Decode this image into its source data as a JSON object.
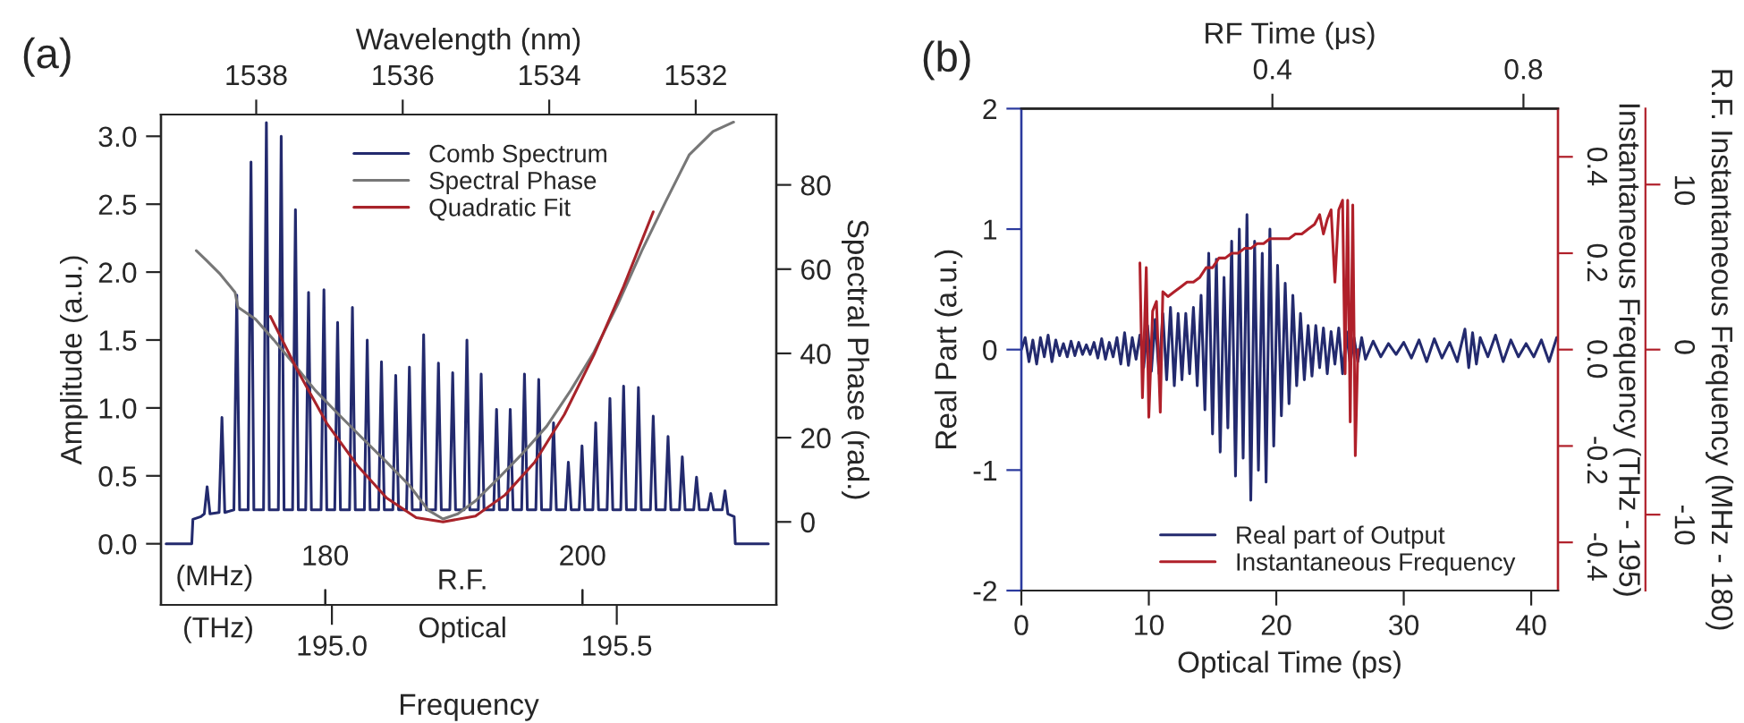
{
  "chart_data": [
    {
      "type": "line",
      "title": "(a)",
      "xlabel": "Frequency",
      "ylabel": "Amplitude (a.u.)",
      "y2label": "Spectral Phase (rad.)",
      "x2label": "Wavelength (nm)",
      "annotations": [
        "(MHz)",
        "180",
        "R.F.",
        "200",
        "(THz)",
        "Optical"
      ],
      "xlim": [
        194.7,
        195.78
      ],
      "xticks": [
        {
          "value": 195.0,
          "label": "195.0"
        },
        195.5
      ],
      "x2lim": [
        1539.3,
        1530.9
      ],
      "x2ticks": [
        1538,
        1536,
        1534,
        1532
      ],
      "ylim": [
        -0.45,
        3.16
      ],
      "yticks": [
        {
          "value": 0,
          "label": "0.0"
        },
        0.5,
        {
          "value": 1,
          "label": "1.0"
        },
        1.5,
        {
          "value": 2,
          "label": "2.0"
        },
        2.5,
        {
          "value": 3,
          "label": "3.0"
        }
      ],
      "y2lim": [
        -19.7,
        96.7
      ],
      "y2ticks": [
        0,
        20,
        40,
        60,
        80
      ],
      "legend": "top",
      "series": [
        {
          "name": "Comb Spectrum",
          "color": "#232a6e",
          "x": [
            194.709,
            194.754,
            194.756,
            194.77,
            194.776,
            194.781,
            194.786,
            194.802,
            194.807,
            194.812,
            194.828,
            194.833,
            194.838,
            194.853,
            194.858,
            194.863,
            194.88,
            194.885,
            194.89,
            194.906,
            194.911,
            194.916,
            194.931,
            194.936,
            194.941,
            194.954,
            194.959,
            194.964,
            194.981,
            194.986,
            194.991,
            195.005,
            195.01,
            195.015,
            195.031,
            195.036,
            195.041,
            195.057,
            195.062,
            195.067,
            195.082,
            195.087,
            195.092,
            195.107,
            195.112,
            195.117,
            195.131,
            195.136,
            195.141,
            195.156,
            195.161,
            195.166,
            195.182,
            195.187,
            195.192,
            195.207,
            195.212,
            195.217,
            195.232,
            195.237,
            195.242,
            195.257,
            195.262,
            195.267,
            195.284,
            195.289,
            195.294,
            195.308,
            195.313,
            195.318,
            195.333,
            195.338,
            195.343,
            195.358,
            195.363,
            195.368,
            195.384,
            195.389,
            195.394,
            195.41,
            195.415,
            195.42,
            195.434,
            195.439,
            195.444,
            195.458,
            195.463,
            195.468,
            195.483,
            195.488,
            195.493,
            195.507,
            195.512,
            195.517,
            195.533,
            195.538,
            195.543,
            195.559,
            195.564,
            195.569,
            195.585,
            195.59,
            195.595,
            195.61,
            195.615,
            195.62,
            195.635,
            195.64,
            195.645,
            195.66,
            195.665,
            195.67,
            195.685,
            195.69,
            195.695,
            195.706,
            195.708,
            195.766
          ],
          "values": [
            0.0,
            0.0,
            0.18,
            0.2,
            0.22,
            0.42,
            0.22,
            0.23,
            0.93,
            0.23,
            0.25,
            1.83,
            0.25,
            0.25,
            2.81,
            0.25,
            0.25,
            3.1,
            0.25,
            0.25,
            3.0,
            0.25,
            0.25,
            2.46,
            0.25,
            0.25,
            1.85,
            0.25,
            0.25,
            1.87,
            0.25,
            0.25,
            1.63,
            0.25,
            0.25,
            1.74,
            0.25,
            0.25,
            1.5,
            0.25,
            0.25,
            1.34,
            0.25,
            0.25,
            1.24,
            0.25,
            0.25,
            1.3,
            0.25,
            0.25,
            1.54,
            0.25,
            0.25,
            1.33,
            0.25,
            0.25,
            1.26,
            0.25,
            0.25,
            1.5,
            0.25,
            0.25,
            1.25,
            0.25,
            0.25,
            0.99,
            0.25,
            0.25,
            0.99,
            0.25,
            0.25,
            1.25,
            0.25,
            0.25,
            1.21,
            0.25,
            0.25,
            0.89,
            0.25,
            0.25,
            0.6,
            0.25,
            0.25,
            0.72,
            0.25,
            0.25,
            0.89,
            0.25,
            0.25,
            1.07,
            0.25,
            0.25,
            1.16,
            0.25,
            0.25,
            1.15,
            0.25,
            0.25,
            0.94,
            0.25,
            0.25,
            0.79,
            0.25,
            0.25,
            0.64,
            0.25,
            0.25,
            0.49,
            0.25,
            0.25,
            0.37,
            0.25,
            0.25,
            0.39,
            0.22,
            0.2,
            0.0,
            0.0
          ]
        },
        {
          "name": "Spectral Phase",
          "color": "#777777",
          "axis": "y2",
          "x": [
            194.762,
            194.778,
            194.804,
            194.83,
            194.835,
            194.866,
            194.898,
            194.929,
            194.971,
            195.012,
            195.054,
            195.096,
            195.137,
            195.169,
            195.195,
            195.221,
            195.252,
            195.294,
            195.335,
            195.377,
            195.419,
            195.46,
            195.502,
            195.544,
            195.585,
            195.627,
            195.669,
            195.705
          ],
          "values": [
            64.4,
            62.3,
            58.8,
            54.5,
            51.0,
            48.1,
            43.2,
            38.2,
            31.2,
            25.5,
            19.8,
            14.2,
            8.5,
            2.8,
            0.7,
            1.9,
            5.0,
            10.6,
            16.3,
            22.7,
            31.2,
            40.3,
            51.7,
            64.4,
            75.8,
            87.1,
            92.7,
            94.9
          ]
        },
        {
          "name": "Quadratic Fit",
          "color": "#a8232a",
          "axis": "y2",
          "x": [
            194.892,
            194.939,
            194.991,
            195.044,
            195.096,
            195.148,
            195.195,
            195.252,
            195.304,
            195.356,
            195.408,
            195.46,
            195.512,
            195.564
          ],
          "values": [
            48.8,
            36.1,
            23.4,
            13.5,
            5.7,
            1.0,
            0.0,
            1.4,
            6.4,
            14.2,
            25.5,
            39.7,
            55.9,
            73.6
          ]
        }
      ]
    },
    {
      "type": "line",
      "title": "(b)",
      "xlabel": "Optical Time (ps)",
      "ylabel": "Real Part (a.u.)",
      "y2label": "Instantaneous Frequency (THz - 195)",
      "y3label": "R.F. Instantaneous Frequency (MHz - 180)",
      "x2label": "RF Time (μs)",
      "xlim": [
        0,
        42.1
      ],
      "xticks": [
        0,
        10,
        20,
        30,
        40
      ],
      "x2lim": [
        0,
        0.855
      ],
      "x2ticks": [
        0.4,
        0.8
      ],
      "ylim": [
        -2,
        2
      ],
      "yticks": [
        -2,
        -1,
        0,
        1,
        2
      ],
      "y2lim": [
        -0.5,
        0.5
      ],
      "y2ticks": [
        -0.4,
        -0.2,
        {
          "value": 0,
          "label": "0.0"
        },
        0.2,
        0.4
      ],
      "y3lim": [
        -14.6,
        14.6
      ],
      "y3ticks": [
        -10,
        0,
        10
      ],
      "legend": "bottom",
      "series": [
        {
          "name": "Real part of Output",
          "color": "#232a6e",
          "x": [
            0.0,
            0.3,
            0.6,
            0.9,
            1.2,
            1.5,
            1.8,
            2.1,
            2.4,
            2.7,
            3.0,
            3.3,
            3.6,
            3.9,
            4.2,
            4.5,
            4.8,
            5.1,
            5.4,
            5.7,
            6.0,
            6.3,
            6.6,
            6.9,
            7.2,
            7.5,
            7.8,
            8.1,
            8.4,
            8.7,
            9.0,
            9.3,
            9.6,
            9.9,
            10.2,
            10.5,
            10.8,
            11.1,
            11.4,
            11.7,
            12.0,
            12.3,
            12.6,
            12.9,
            13.2,
            13.5,
            13.8,
            14.1,
            14.4,
            14.7,
            15.0,
            15.3,
            15.6,
            15.9,
            16.2,
            16.5,
            16.8,
            17.1,
            17.4,
            17.7,
            18.0,
            18.3,
            18.6,
            18.9,
            19.2,
            19.5,
            19.8,
            20.1,
            20.4,
            20.7,
            21.0,
            21.3,
            21.6,
            21.9,
            22.2,
            22.5,
            22.8,
            23.1,
            23.4,
            23.7,
            24.0,
            24.3,
            24.6,
            24.9,
            25.2,
            25.5,
            25.8,
            26.1,
            26.4,
            26.7,
            27.0,
            27.6,
            28.2,
            28.8,
            29.4,
            30.0,
            30.6,
            31.2,
            31.8,
            32.4,
            33.0,
            33.6,
            34.2,
            34.8,
            35.1,
            35.4,
            35.7,
            36.0,
            36.6,
            37.2,
            37.8,
            38.4,
            39.0,
            39.6,
            40.2,
            40.8,
            41.4,
            42.0
          ],
          "values": [
            0,
            0.1,
            -0.1,
            0.08,
            -0.12,
            0.1,
            -0.06,
            0.12,
            -0.1,
            0.08,
            -0.05,
            0.05,
            -0.06,
            0.07,
            -0.05,
            0.06,
            -0.04,
            0.04,
            -0.04,
            0.06,
            -0.07,
            0.09,
            -0.08,
            0.06,
            -0.06,
            0.1,
            -0.12,
            0.14,
            -0.13,
            0.1,
            -0.08,
            0.12,
            -0.15,
            0.2,
            -0.18,
            0.25,
            -0.2,
            0.3,
            -0.25,
            0.35,
            -0.3,
            0.3,
            -0.25,
            0.3,
            -0.2,
            0.35,
            -0.3,
            0.45,
            -0.5,
            0.8,
            -0.7,
            0.75,
            -0.85,
            0.6,
            -0.65,
            0.9,
            -1.05,
            1.0,
            -0.9,
            1.12,
            -1.25,
            0.9,
            -1.0,
            0.8,
            -1.1,
            1.0,
            -0.8,
            0.7,
            -0.55,
            0.55,
            -0.45,
            0.45,
            -0.3,
            0.3,
            -0.25,
            0.2,
            -0.22,
            0.2,
            -0.15,
            0.18,
            -0.2,
            0.15,
            -0.12,
            0.18,
            -0.2,
            0.15,
            -0.12,
            0.1,
            -0.1,
            0.1,
            -0.08,
            0.07,
            -0.06,
            0.05,
            -0.04,
            0.06,
            -0.07,
            0.08,
            -0.1,
            0.09,
            -0.07,
            0.06,
            -0.1,
            0.17,
            -0.15,
            0.14,
            -0.12,
            0.1,
            -0.06,
            0.12,
            -0.1,
            0.08,
            -0.06,
            0.05,
            -0.06,
            0.08,
            -0.1,
            0.1
          ]
        },
        {
          "name": "Instantaneous Frequency",
          "color": "#b0202a",
          "axis": "y2",
          "x": [
            9.3,
            9.5,
            9.8,
            10.0,
            10.3,
            10.6,
            10.9,
            11.1,
            11.5,
            12.0,
            12.5,
            13.0,
            13.5,
            14.0,
            14.5,
            15.0,
            15.5,
            16.0,
            16.5,
            17.0,
            17.5,
            18.0,
            18.5,
            19.0,
            19.5,
            20.0,
            20.5,
            21.0,
            21.5,
            22.0,
            22.5,
            23.0,
            23.4,
            23.7,
            24.0,
            24.3,
            24.6,
            24.9,
            25.2,
            25.4,
            25.6,
            25.8,
            26.0,
            26.2,
            26.4
          ],
          "values": [
            0.18,
            -0.1,
            0.17,
            -0.14,
            0.08,
            0.1,
            -0.13,
            0.12,
            0.11,
            0.12,
            0.13,
            0.14,
            0.14,
            0.15,
            0.17,
            0.17,
            0.19,
            0.19,
            0.2,
            0.2,
            0.21,
            0.21,
            0.22,
            0.22,
            0.23,
            0.23,
            0.23,
            0.23,
            0.24,
            0.24,
            0.25,
            0.26,
            0.28,
            0.24,
            0.27,
            0.29,
            0.14,
            0.29,
            0.31,
            -0.05,
            0.31,
            -0.15,
            0.3,
            -0.22,
            0.0
          ]
        }
      ]
    }
  ]
}
